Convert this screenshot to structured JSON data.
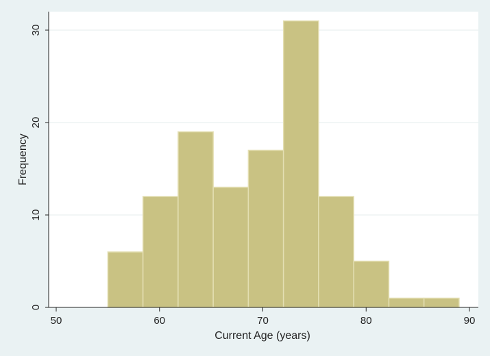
{
  "chart_data": {
    "type": "bar",
    "xlabel": "Current Age (years)",
    "ylabel": "Frequency",
    "xlim": [
      50,
      90
    ],
    "ylim": [
      0,
      32
    ],
    "x_ticks": [
      "50",
      "60",
      "70",
      "80",
      "90"
    ],
    "y_ticks": [
      "0",
      "10",
      "20",
      "30"
    ],
    "grid": true,
    "bins": [
      {
        "start": 55.0,
        "end": 58.4,
        "value": 6
      },
      {
        "start": 58.4,
        "end": 61.8,
        "value": 12
      },
      {
        "start": 61.8,
        "end": 65.2,
        "value": 19
      },
      {
        "start": 65.2,
        "end": 68.6,
        "value": 13
      },
      {
        "start": 68.6,
        "end": 72.0,
        "value": 17
      },
      {
        "start": 72.0,
        "end": 75.4,
        "value": 31
      },
      {
        "start": 75.4,
        "end": 78.8,
        "value": 12
      },
      {
        "start": 78.8,
        "end": 82.2,
        "value": 5
      },
      {
        "start": 82.2,
        "end": 85.6,
        "value": 1
      },
      {
        "start": 85.6,
        "end": 89.0,
        "value": 1
      }
    ],
    "colors": {
      "bar_fill": "#c9c283",
      "bar_stroke": "#e4dfb3",
      "plot_background": "#ffffff",
      "page_background": "#eaf2f3",
      "grid": "#e6ecee",
      "axis": "#222222"
    }
  }
}
